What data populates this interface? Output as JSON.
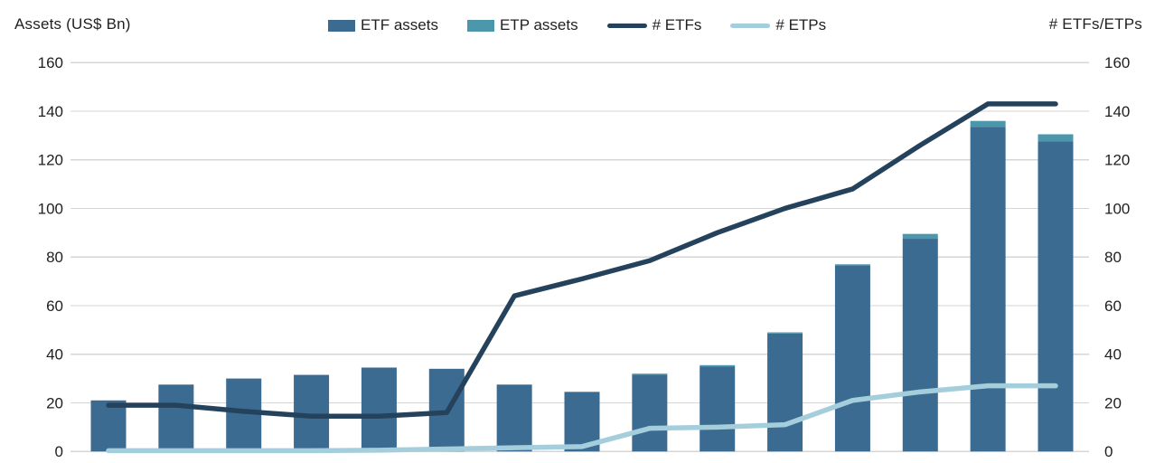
{
  "chart_data": {
    "type": "combo-bar-line",
    "left_axis": {
      "title": "Assets (US$ Bn)",
      "min": 0,
      "max": 160,
      "step": 20,
      "tick_labels": [
        "0",
        "20",
        "40",
        "60",
        "80",
        "100",
        "120",
        "140",
        "160"
      ]
    },
    "right_axis": {
      "title": "# ETFs/ETPs",
      "min": 0,
      "max": 160,
      "step": 20,
      "tick_labels": [
        "0",
        "20",
        "40",
        "60",
        "80",
        "100",
        "120",
        "140",
        "160"
      ]
    },
    "x_axis": {
      "points": 15,
      "tick_labels": []
    },
    "grid": true,
    "legend_position": "top",
    "series": [
      {
        "name": "ETF assets",
        "type": "bar",
        "stack": "assets",
        "color": "#3c6b92",
        "values": [
          21,
          27.5,
          30,
          31.5,
          34.5,
          34,
          27.5,
          24.5,
          31.5,
          35,
          48.5,
          76.5,
          87.5,
          133.5,
          127.5
        ]
      },
      {
        "name": "ETP assets",
        "type": "bar",
        "stack": "assets",
        "color": "#4c97ac",
        "values": [
          0,
          0,
          0,
          0,
          0,
          0,
          0,
          0,
          0.5,
          0.5,
          0.5,
          0.5,
          2,
          2.5,
          3
        ]
      },
      {
        "name": "# ETFs",
        "type": "line",
        "color": "#24425c",
        "values": [
          19,
          19,
          16.5,
          14.5,
          14.5,
          16,
          64,
          71,
          78.5,
          90,
          100,
          108,
          126,
          143,
          143
        ]
      },
      {
        "name": "# ETPs",
        "type": "line",
        "color": "#a5cedd",
        "values": [
          0.3,
          0.3,
          0.3,
          0.3,
          0.5,
          1,
          1.5,
          2,
          9.5,
          10,
          11,
          21,
          24.5,
          27,
          27
        ]
      }
    ],
    "style": {
      "grid_color": "#d6d6d6",
      "text_color": "#1f1f1f",
      "background": "#ffffff"
    }
  }
}
